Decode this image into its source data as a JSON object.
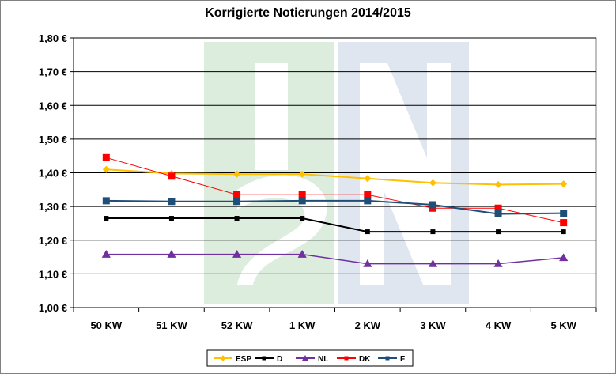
{
  "chart_data": {
    "type": "line",
    "title": "Korrigierte Notierungen 2014/2015",
    "xlabel": "",
    "ylabel": "",
    "ylim": [
      1.0,
      1.8
    ],
    "y_ticks": [
      "1,00 €",
      "1,10 €",
      "1,20 €",
      "1,30 €",
      "1,40 €",
      "1,50 €",
      "1,60 €",
      "1,70 €",
      "1,80 €"
    ],
    "categories": [
      "50 KW",
      "51 KW",
      "52 KW",
      "1 KW",
      "2 KW",
      "3 KW",
      "4 KW",
      "5 KW"
    ],
    "grid": true,
    "legend_position": "bottom",
    "series": [
      {
        "name": "ESP",
        "color": "#FFC000",
        "marker": "diamond",
        "values": [
          1.41,
          1.398,
          1.396,
          1.396,
          1.383,
          1.37,
          1.365,
          1.367
        ]
      },
      {
        "name": "D",
        "color": "#000000",
        "marker": "square",
        "values": [
          1.265,
          1.265,
          1.265,
          1.265,
          1.225,
          1.225,
          1.225,
          1.225
        ]
      },
      {
        "name": "NL",
        "color": "#7030A0",
        "marker": "triangle",
        "values": [
          1.158,
          1.158,
          1.158,
          1.158,
          1.13,
          1.13,
          1.13,
          1.148
        ]
      },
      {
        "name": "DK",
        "color": "#FF0000",
        "marker": "square",
        "values": [
          1.445,
          1.39,
          1.335,
          1.335,
          1.335,
          1.295,
          1.295,
          1.252
        ]
      },
      {
        "name": "F",
        "color": "#1F4E79",
        "marker": "square",
        "values": [
          1.317,
          1.315,
          1.315,
          1.317,
          1.317,
          1.305,
          1.278,
          1.28
        ]
      }
    ],
    "watermark": "ISN"
  }
}
